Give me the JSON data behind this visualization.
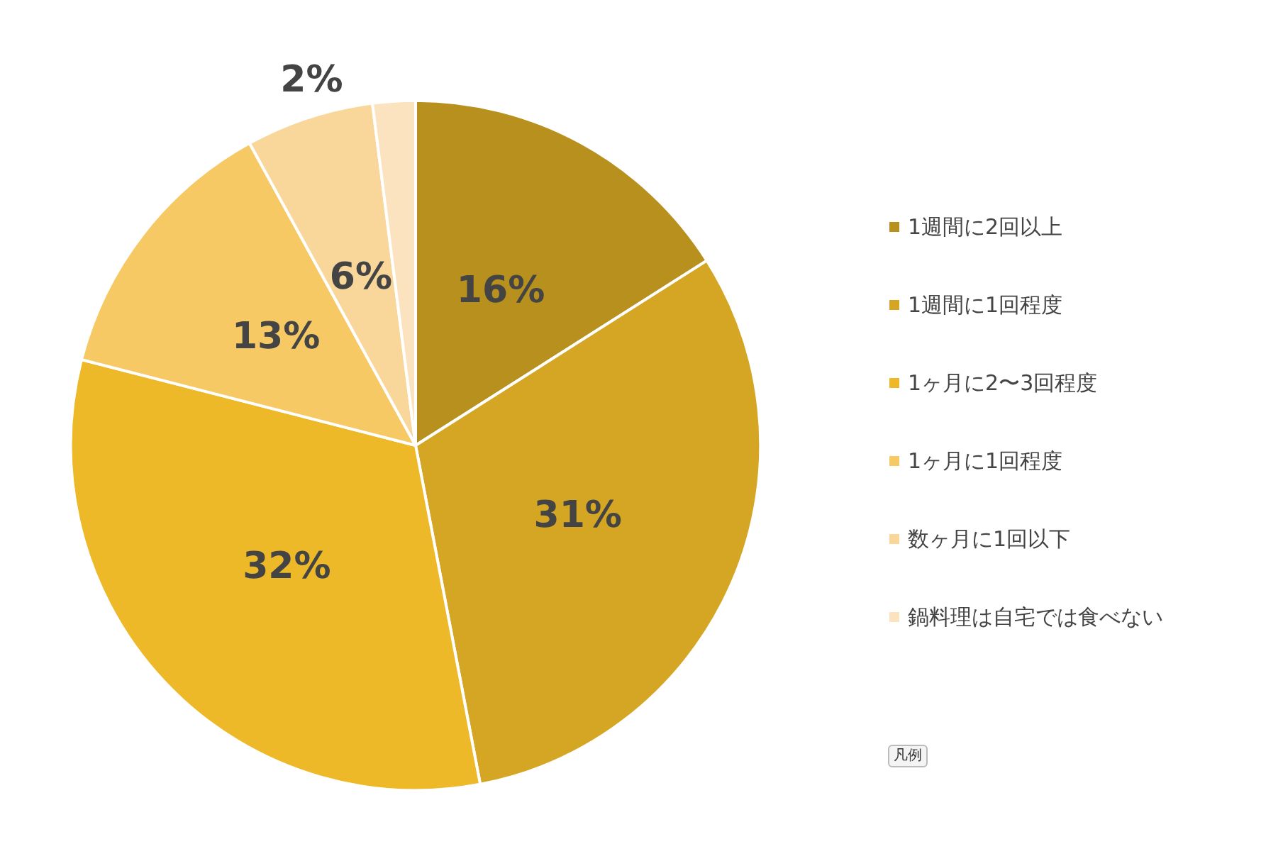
{
  "chart_data": {
    "type": "pie",
    "categories": [
      "1週間に2回以上",
      "1週間に1回程度",
      "1ヶ月に2〜3回程度",
      "1ヶ月に1回程度",
      "数ヶ月に1回以下",
      "鍋料理は自宅では食べない"
    ],
    "values": [
      16,
      31,
      32,
      13,
      6,
      2
    ],
    "colors": [
      "#b8901e",
      "#d4a624",
      "#eeb928",
      "#f6c964",
      "#f9d79a",
      "#fce3c0"
    ],
    "value_labels": [
      "16%",
      "31%",
      "32%",
      "13%",
      "6%",
      "2%"
    ],
    "legend": "right",
    "annotations": [
      "凡例"
    ]
  }
}
